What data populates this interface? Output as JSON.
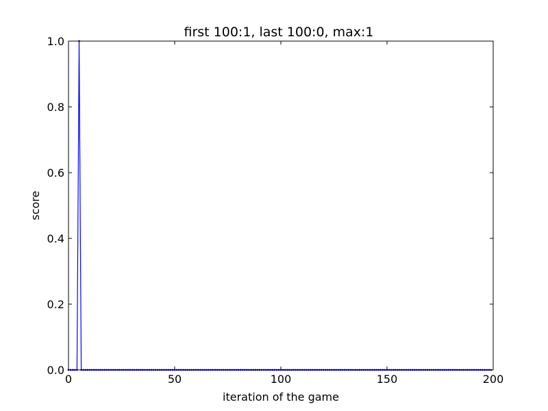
{
  "chart_data": {
    "type": "line",
    "title": "first 100:1, last 100:0, max:1",
    "xlabel": "iteration of the game",
    "ylabel": "score",
    "xlim": [
      0,
      200
    ],
    "ylim": [
      0.0,
      1.0
    ],
    "xticks": [
      "0",
      "50",
      "100",
      "150",
      "200"
    ],
    "yticks": [
      "0.0",
      "0.2",
      "0.4",
      "0.6",
      "0.8",
      "1.0"
    ],
    "grid": false,
    "series": [
      {
        "color": "#0000ff",
        "marker": "dot",
        "x": [
          0,
          1,
          2,
          3,
          4,
          5,
          6,
          7,
          8,
          9,
          10,
          11,
          12,
          13,
          14,
          15,
          16,
          17,
          18,
          19,
          20,
          21,
          22,
          23,
          24,
          25,
          26,
          27,
          28,
          29,
          30,
          31,
          32,
          33,
          34,
          35,
          36,
          37,
          38,
          39,
          40,
          41,
          42,
          43,
          44,
          45,
          46,
          47,
          48,
          49,
          50,
          51,
          52,
          53,
          54,
          55,
          56,
          57,
          58,
          59,
          60,
          61,
          62,
          63,
          64,
          65,
          66,
          67,
          68,
          69,
          70,
          71,
          72,
          73,
          74,
          75,
          76,
          77,
          78,
          79,
          80,
          81,
          82,
          83,
          84,
          85,
          86,
          87,
          88,
          89,
          90,
          91,
          92,
          93,
          94,
          95,
          96,
          97,
          98,
          99,
          100,
          101,
          102,
          103,
          104,
          105,
          106,
          107,
          108,
          109,
          110,
          111,
          112,
          113,
          114,
          115,
          116,
          117,
          118,
          119,
          120,
          121,
          122,
          123,
          124,
          125,
          126,
          127,
          128,
          129,
          130,
          131,
          132,
          133,
          134,
          135,
          136,
          137,
          138,
          139,
          140,
          141,
          142,
          143,
          144,
          145,
          146,
          147,
          148,
          149,
          150,
          151,
          152,
          153,
          154,
          155,
          156,
          157,
          158,
          159,
          160,
          161,
          162,
          163,
          164,
          165,
          166,
          167,
          168,
          169,
          170,
          171,
          172,
          173,
          174,
          175,
          176,
          177,
          178,
          179,
          180,
          181,
          182,
          183,
          184,
          185,
          186,
          187,
          188,
          189,
          190,
          191,
          192,
          193,
          194,
          195,
          196,
          197,
          198,
          199
        ],
        "y": [
          0,
          0,
          0,
          0,
          0,
          1,
          0,
          0,
          0,
          0,
          0,
          0,
          0,
          0,
          0,
          0,
          0,
          0,
          0,
          0,
          0,
          0,
          0,
          0,
          0,
          0,
          0,
          0,
          0,
          0,
          0,
          0,
          0,
          0,
          0,
          0,
          0,
          0,
          0,
          0,
          0,
          0,
          0,
          0,
          0,
          0,
          0,
          0,
          0,
          0,
          0,
          0,
          0,
          0,
          0,
          0,
          0,
          0,
          0,
          0,
          0,
          0,
          0,
          0,
          0,
          0,
          0,
          0,
          0,
          0,
          0,
          0,
          0,
          0,
          0,
          0,
          0,
          0,
          0,
          0,
          0,
          0,
          0,
          0,
          0,
          0,
          0,
          0,
          0,
          0,
          0,
          0,
          0,
          0,
          0,
          0,
          0,
          0,
          0,
          0,
          0,
          0,
          0,
          0,
          0,
          0,
          0,
          0,
          0,
          0,
          0,
          0,
          0,
          0,
          0,
          0,
          0,
          0,
          0,
          0,
          0,
          0,
          0,
          0,
          0,
          0,
          0,
          0,
          0,
          0,
          0,
          0,
          0,
          0,
          0,
          0,
          0,
          0,
          0,
          0,
          0,
          0,
          0,
          0,
          0,
          0,
          0,
          0,
          0,
          0,
          0,
          0,
          0,
          0,
          0,
          0,
          0,
          0,
          0,
          0,
          0,
          0,
          0,
          0,
          0,
          0,
          0,
          0,
          0,
          0,
          0,
          0,
          0,
          0,
          0,
          0,
          0,
          0,
          0,
          0,
          0,
          0,
          0,
          0,
          0,
          0,
          0,
          0,
          0,
          0,
          0,
          0,
          0,
          0,
          0,
          0,
          0,
          0,
          0,
          0
        ]
      }
    ]
  }
}
